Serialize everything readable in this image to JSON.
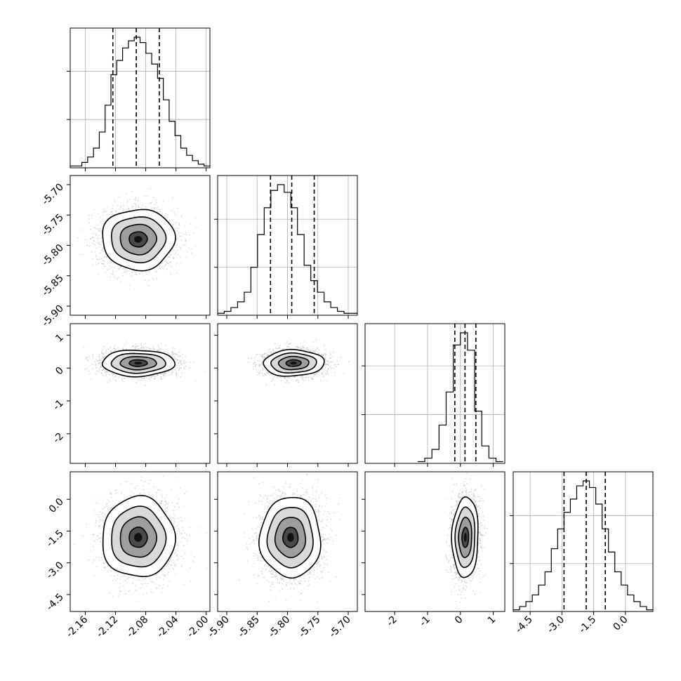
{
  "chart_data": {
    "type": "corner",
    "parameters": [
      {
        "range": [
          -2.18,
          -1.995
        ],
        "ticks": [
          "-2.16",
          "-2.12",
          "-2.08",
          "-2.04",
          "-2.00"
        ]
      },
      {
        "range": [
          -5.915,
          -5.685
        ],
        "ticks": [
          "-5.90",
          "-5.85",
          "-5.80",
          "-5.75",
          "-5.70"
        ]
      },
      {
        "range": [
          -2.9,
          1.35
        ],
        "ticks": [
          "-2",
          "-1",
          "0",
          "1"
        ],
        "ticks_left": [
          "1",
          "0",
          "-1",
          "-2"
        ]
      },
      {
        "range": [
          -5.3,
          1.3
        ],
        "ticks": [
          "-4.5",
          "-3.0",
          "-1.5",
          "0.0"
        ]
      }
    ],
    "marginals": [
      {
        "bins_range": [
          -2.18,
          -1.995
        ],
        "counts": [
          1,
          1,
          3,
          6,
          11,
          20,
          35,
          52,
          60,
          67,
          71,
          73,
          70,
          64,
          58,
          50,
          38,
          26,
          18,
          11,
          7,
          4,
          2,
          1
        ],
        "quantiles": [
          -2.1235,
          -2.0925,
          -2.062
        ]
      },
      {
        "bins_range": [
          -5.915,
          -5.685
        ],
        "counts": [
          1,
          2,
          4,
          7,
          12,
          25,
          42,
          56,
          65,
          68,
          64,
          56,
          42,
          26,
          18,
          12,
          7,
          4,
          2,
          1,
          1
        ],
        "quantiles": [
          -5.828,
          -5.793,
          -5.756
        ]
      },
      {
        "bins_range": [
          -1.3,
          1.3
        ],
        "counts": [
          1,
          3,
          8,
          22,
          41,
          68,
          75,
          65,
          30,
          10,
          3,
          1
        ],
        "quantiles": [
          -0.17,
          0.14,
          0.47
        ]
      },
      {
        "bins_range": [
          -5.3,
          1.3
        ],
        "counts": [
          1,
          3,
          6,
          10,
          16,
          24,
          38,
          50,
          60,
          68,
          76,
          79,
          75,
          65,
          50,
          36,
          24,
          16,
          10,
          6,
          3,
          1
        ],
        "quantiles": [
          -2.9,
          -1.85,
          -0.95
        ]
      }
    ],
    "pairs": [
      {
        "x": 0,
        "y": 1,
        "center": [
          -2.09,
          -5.79
        ],
        "sigma": [
          0.024,
          0.025
        ],
        "rho": 0.0
      },
      {
        "x": 0,
        "y": 2,
        "center": [
          -2.09,
          0.15
        ],
        "sigma": [
          0.024,
          0.2
        ],
        "rho": 0.0
      },
      {
        "x": 1,
        "y": 2,
        "center": [
          -5.79,
          0.15
        ],
        "sigma": [
          0.025,
          0.2
        ],
        "rho": 0.05
      },
      {
        "x": 0,
        "y": 3,
        "center": [
          -2.09,
          -1.8
        ],
        "sigma": [
          0.024,
          0.95
        ],
        "rho": 0.0
      },
      {
        "x": 1,
        "y": 3,
        "center": [
          -5.795,
          -1.8
        ],
        "sigma": [
          0.025,
          0.95
        ],
        "rho": 0.0
      },
      {
        "x": 2,
        "y": 3,
        "center": [
          0.15,
          -1.8
        ],
        "sigma": [
          0.2,
          0.95
        ],
        "rho": 0.05
      }
    ]
  }
}
